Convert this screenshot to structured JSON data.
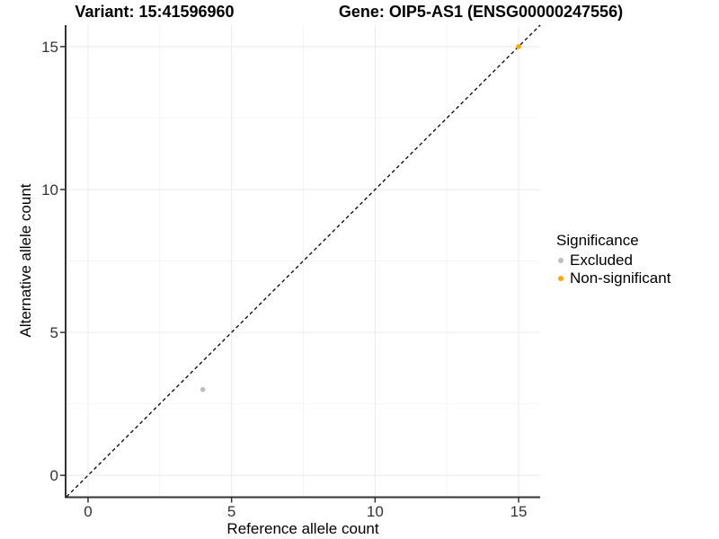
{
  "titles": {
    "variant": "Variant: 15:41596960",
    "gene": "Gene: OIP5-AS1 (ENSG00000247556)"
  },
  "axes": {
    "x_label": "Reference allele count",
    "y_label": "Alternative allele count"
  },
  "legend": {
    "title": "Significance",
    "items": [
      {
        "label": "Excluded",
        "color": "#bdbdbd"
      },
      {
        "label": "Non-significant",
        "color": "#ffa500"
      }
    ]
  },
  "chart_data": {
    "type": "scatter",
    "title": "Variant: 15:41596960",
    "subtitle": "Gene: OIP5-AS1 (ENSG00000247556)",
    "xlabel": "Reference allele count",
    "ylabel": "Alternative allele count",
    "xlim": [
      -0.75,
      15.75
    ],
    "ylim": [
      -0.75,
      15.75
    ],
    "x_ticks": [
      0,
      5,
      10,
      15
    ],
    "y_ticks": [
      0,
      5,
      10,
      15
    ],
    "minor_ticks": [
      2.5,
      7.5,
      12.5
    ],
    "grid": "major+minor",
    "legend_title": "Significance",
    "legend_position": "right",
    "series": [
      {
        "name": "Excluded",
        "color": "#bdbdbd",
        "points": [
          {
            "x": 4,
            "y": 3
          }
        ]
      },
      {
        "name": "Non-significant",
        "color": "#ffa500",
        "points": [
          {
            "x": 15,
            "y": 15
          }
        ]
      }
    ],
    "reference_line": {
      "equation": "y = x",
      "style": "dashed",
      "color": "#000000"
    }
  },
  "colors": {
    "background": "#ffffff",
    "grid_major": "#eaeaea",
    "grid_minor": "#f5f5f5",
    "axis_line": "#333333",
    "tick_text": "#333333",
    "point_excluded": "#bdbdbd",
    "point_non_significant": "#ffa500"
  }
}
